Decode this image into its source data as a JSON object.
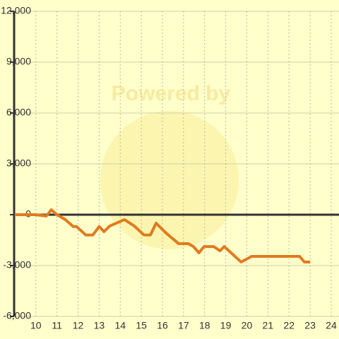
{
  "chart_data": {
    "type": "line",
    "watermark": "Powered by",
    "x": [
      9.0,
      9.97,
      10.5,
      10.73,
      11.0,
      11.4,
      11.77,
      11.93,
      12.37,
      12.7,
      13.0,
      13.23,
      13.5,
      14.2,
      14.67,
      15.13,
      15.43,
      15.7,
      16.17,
      16.77,
      17.23,
      17.47,
      17.73,
      17.97,
      18.43,
      18.73,
      18.93,
      19.73,
      20.23,
      22.5,
      22.73,
      23.0
    ],
    "series": [
      {
        "color": "#e07b20",
        "values": [
          0,
          0,
          -80,
          290,
          0,
          -290,
          -700,
          -700,
          -1200,
          -1200,
          -700,
          -1000,
          -670,
          -290,
          -670,
          -1200,
          -1200,
          -500,
          -1080,
          -1710,
          -1710,
          -1880,
          -2250,
          -1880,
          -1880,
          -2130,
          -1880,
          -2790,
          -2460,
          -2460,
          -2790,
          -2790
        ]
      }
    ],
    "xlim": [
      8.97,
      24.37
    ],
    "xticks": [
      10,
      11,
      12,
      13,
      14,
      15,
      16,
      17,
      18,
      19,
      20,
      21,
      22,
      23,
      24
    ],
    "ylim": [
      -6000,
      12000
    ],
    "yticks": [
      {
        "value": -6000,
        "label": "-6,000"
      },
      {
        "value": -3000,
        "label": "-3,000"
      },
      0,
      {
        "value": 3000,
        "label": "3,000"
      },
      {
        "value": 6000,
        "label": "6,000"
      },
      {
        "value": 9000,
        "label": "9,000"
      },
      {
        "value": 12000,
        "label": "12,000"
      }
    ],
    "grid": true
  }
}
